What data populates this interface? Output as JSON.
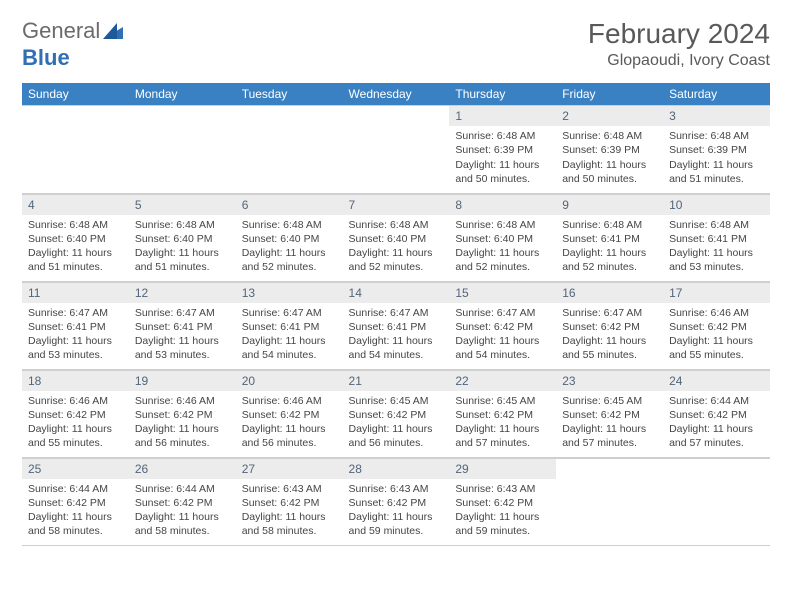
{
  "brand": {
    "part1": "General",
    "part2": "Blue",
    "accent_color": "#2e6fb5"
  },
  "title": "February 2024",
  "location": "Glopaoudi, Ivory Coast",
  "colors": {
    "header_bg": "#3a81c4",
    "header_text": "#ffffff",
    "daynum_bg": "#ececec",
    "text": "#454545",
    "title_text": "#595959"
  },
  "weekdays": [
    "Sunday",
    "Monday",
    "Tuesday",
    "Wednesday",
    "Thursday",
    "Friday",
    "Saturday"
  ],
  "weeks": [
    [
      {
        "n": "",
        "sr": "",
        "ss": "",
        "dl": ""
      },
      {
        "n": "",
        "sr": "",
        "ss": "",
        "dl": ""
      },
      {
        "n": "",
        "sr": "",
        "ss": "",
        "dl": ""
      },
      {
        "n": "",
        "sr": "",
        "ss": "",
        "dl": ""
      },
      {
        "n": "1",
        "sr": "Sunrise: 6:48 AM",
        "ss": "Sunset: 6:39 PM",
        "dl": "Daylight: 11 hours and 50 minutes."
      },
      {
        "n": "2",
        "sr": "Sunrise: 6:48 AM",
        "ss": "Sunset: 6:39 PM",
        "dl": "Daylight: 11 hours and 50 minutes."
      },
      {
        "n": "3",
        "sr": "Sunrise: 6:48 AM",
        "ss": "Sunset: 6:39 PM",
        "dl": "Daylight: 11 hours and 51 minutes."
      }
    ],
    [
      {
        "n": "4",
        "sr": "Sunrise: 6:48 AM",
        "ss": "Sunset: 6:40 PM",
        "dl": "Daylight: 11 hours and 51 minutes."
      },
      {
        "n": "5",
        "sr": "Sunrise: 6:48 AM",
        "ss": "Sunset: 6:40 PM",
        "dl": "Daylight: 11 hours and 51 minutes."
      },
      {
        "n": "6",
        "sr": "Sunrise: 6:48 AM",
        "ss": "Sunset: 6:40 PM",
        "dl": "Daylight: 11 hours and 52 minutes."
      },
      {
        "n": "7",
        "sr": "Sunrise: 6:48 AM",
        "ss": "Sunset: 6:40 PM",
        "dl": "Daylight: 11 hours and 52 minutes."
      },
      {
        "n": "8",
        "sr": "Sunrise: 6:48 AM",
        "ss": "Sunset: 6:40 PM",
        "dl": "Daylight: 11 hours and 52 minutes."
      },
      {
        "n": "9",
        "sr": "Sunrise: 6:48 AM",
        "ss": "Sunset: 6:41 PM",
        "dl": "Daylight: 11 hours and 52 minutes."
      },
      {
        "n": "10",
        "sr": "Sunrise: 6:48 AM",
        "ss": "Sunset: 6:41 PM",
        "dl": "Daylight: 11 hours and 53 minutes."
      }
    ],
    [
      {
        "n": "11",
        "sr": "Sunrise: 6:47 AM",
        "ss": "Sunset: 6:41 PM",
        "dl": "Daylight: 11 hours and 53 minutes."
      },
      {
        "n": "12",
        "sr": "Sunrise: 6:47 AM",
        "ss": "Sunset: 6:41 PM",
        "dl": "Daylight: 11 hours and 53 minutes."
      },
      {
        "n": "13",
        "sr": "Sunrise: 6:47 AM",
        "ss": "Sunset: 6:41 PM",
        "dl": "Daylight: 11 hours and 54 minutes."
      },
      {
        "n": "14",
        "sr": "Sunrise: 6:47 AM",
        "ss": "Sunset: 6:41 PM",
        "dl": "Daylight: 11 hours and 54 minutes."
      },
      {
        "n": "15",
        "sr": "Sunrise: 6:47 AM",
        "ss": "Sunset: 6:42 PM",
        "dl": "Daylight: 11 hours and 54 minutes."
      },
      {
        "n": "16",
        "sr": "Sunrise: 6:47 AM",
        "ss": "Sunset: 6:42 PM",
        "dl": "Daylight: 11 hours and 55 minutes."
      },
      {
        "n": "17",
        "sr": "Sunrise: 6:46 AM",
        "ss": "Sunset: 6:42 PM",
        "dl": "Daylight: 11 hours and 55 minutes."
      }
    ],
    [
      {
        "n": "18",
        "sr": "Sunrise: 6:46 AM",
        "ss": "Sunset: 6:42 PM",
        "dl": "Daylight: 11 hours and 55 minutes."
      },
      {
        "n": "19",
        "sr": "Sunrise: 6:46 AM",
        "ss": "Sunset: 6:42 PM",
        "dl": "Daylight: 11 hours and 56 minutes."
      },
      {
        "n": "20",
        "sr": "Sunrise: 6:46 AM",
        "ss": "Sunset: 6:42 PM",
        "dl": "Daylight: 11 hours and 56 minutes."
      },
      {
        "n": "21",
        "sr": "Sunrise: 6:45 AM",
        "ss": "Sunset: 6:42 PM",
        "dl": "Daylight: 11 hours and 56 minutes."
      },
      {
        "n": "22",
        "sr": "Sunrise: 6:45 AM",
        "ss": "Sunset: 6:42 PM",
        "dl": "Daylight: 11 hours and 57 minutes."
      },
      {
        "n": "23",
        "sr": "Sunrise: 6:45 AM",
        "ss": "Sunset: 6:42 PM",
        "dl": "Daylight: 11 hours and 57 minutes."
      },
      {
        "n": "24",
        "sr": "Sunrise: 6:44 AM",
        "ss": "Sunset: 6:42 PM",
        "dl": "Daylight: 11 hours and 57 minutes."
      }
    ],
    [
      {
        "n": "25",
        "sr": "Sunrise: 6:44 AM",
        "ss": "Sunset: 6:42 PM",
        "dl": "Daylight: 11 hours and 58 minutes."
      },
      {
        "n": "26",
        "sr": "Sunrise: 6:44 AM",
        "ss": "Sunset: 6:42 PM",
        "dl": "Daylight: 11 hours and 58 minutes."
      },
      {
        "n": "27",
        "sr": "Sunrise: 6:43 AM",
        "ss": "Sunset: 6:42 PM",
        "dl": "Daylight: 11 hours and 58 minutes."
      },
      {
        "n": "28",
        "sr": "Sunrise: 6:43 AM",
        "ss": "Sunset: 6:42 PM",
        "dl": "Daylight: 11 hours and 59 minutes."
      },
      {
        "n": "29",
        "sr": "Sunrise: 6:43 AM",
        "ss": "Sunset: 6:42 PM",
        "dl": "Daylight: 11 hours and 59 minutes."
      },
      {
        "n": "",
        "sr": "",
        "ss": "",
        "dl": ""
      },
      {
        "n": "",
        "sr": "",
        "ss": "",
        "dl": ""
      }
    ]
  ]
}
